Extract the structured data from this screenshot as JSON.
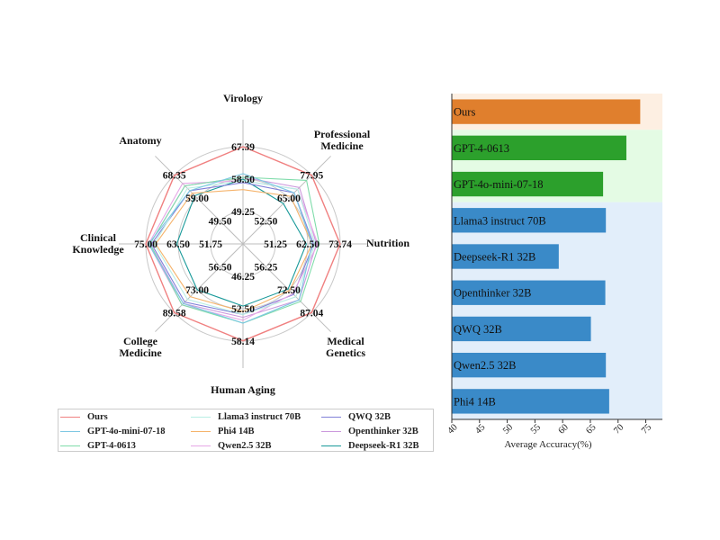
{
  "chart_data": [
    {
      "type": "radar",
      "axes": [
        "Virology",
        "Professional Medicine",
        "Nutrition",
        "Medical Genetics",
        "Human Aging",
        "College Medicine",
        "Clinical Knowledge",
        "Anatomy"
      ],
      "ring_labels": [
        [
          "49.25",
          "58.50",
          "67.39"
        ],
        [
          "52.50",
          "65.00",
          "77.95"
        ],
        [
          "51.25",
          "62.50",
          "73.74"
        ],
        [
          "56.25",
          "72.50",
          "87.04"
        ],
        [
          "46.25",
          "52.50",
          "58.14"
        ],
        [
          "56.50",
          "73.00",
          "89.58"
        ],
        [
          "51.75",
          "63.50",
          "75.00"
        ],
        [
          "49.50",
          "59.00",
          "68.35"
        ]
      ],
      "series": [
        {
          "name": "Ours",
          "color": "#f08080",
          "values": [
            67.4,
            77.9,
            73.7,
            87.0,
            58.1,
            89.6,
            75.0,
            68.3
          ]
        },
        {
          "name": "GPT-4o-mini-07-18",
          "color": "#7ec8e3",
          "values": [
            60.0,
            68.0,
            64.0,
            79.0,
            55.0,
            83.0,
            74.0,
            62.0
          ]
        },
        {
          "name": "GPT-4-0613",
          "color": "#7fdcaa",
          "values": [
            59.0,
            75.0,
            66.5,
            80.0,
            55.0,
            84.0,
            73.5,
            64.0
          ]
        },
        {
          "name": "Llama3 instruct 70B",
          "color": "#b8eee4",
          "values": [
            58.0,
            70.0,
            65.0,
            77.0,
            53.5,
            80.0,
            72.0,
            63.0
          ]
        },
        {
          "name": "Phi4 14B",
          "color": "#f5b36b",
          "values": [
            55.5,
            66.0,
            64.0,
            73.0,
            53.0,
            78.0,
            71.5,
            61.0
          ]
        },
        {
          "name": "Qwen2.5 32B",
          "color": "#e6a8e6",
          "values": [
            58.0,
            70.0,
            66.0,
            75.0,
            54.5,
            84.0,
            74.0,
            65.0
          ]
        },
        {
          "name": "QWQ 32B",
          "color": "#8080d8",
          "values": [
            57.5,
            68.0,
            64.5,
            75.5,
            53.5,
            82.0,
            73.0,
            62.0
          ]
        },
        {
          "name": "Openthinker 32B",
          "color": "#cc99dd",
          "values": [
            59.0,
            71.0,
            65.5,
            79.0,
            54.0,
            83.0,
            73.5,
            64.0
          ]
        },
        {
          "name": "Deepseek-R1 32B",
          "color": "#1a9a9a",
          "values": [
            58.5,
            62.0,
            62.0,
            72.0,
            52.0,
            73.0,
            64.0,
            60.0
          ]
        }
      ],
      "legend_order": [
        "Ours",
        "Llama3 instruct 70B",
        "QWQ 32B",
        "GPT-4o-mini-07-18",
        "Phi4 14B",
        "Openthinker 32B",
        "GPT-4-0613",
        "Qwen2.5 32B",
        "Deepseek-R1 32B"
      ]
    },
    {
      "type": "bar",
      "orientation": "horizontal",
      "categories": [
        "Ours",
        "GPT-4-0613",
        "GPT-4o-mini-07-18",
        "Llama3 instruct 70B",
        "Deepseek-R1 32B",
        "Openthinker 32B",
        "QWQ 32B",
        "Qwen2.5 32B",
        "Phi4 14B"
      ],
      "values": [
        74.0,
        71.5,
        67.3,
        67.8,
        59.3,
        67.7,
        65.1,
        67.8,
        68.4
      ],
      "colors": [
        "#e07f2d",
        "#2ca02c",
        "#2ca02c",
        "#3a8ac8",
        "#3a8ac8",
        "#3a8ac8",
        "#3a8ac8",
        "#3a8ac8",
        "#3a8ac8"
      ],
      "group_bg": [
        {
          "from": 0,
          "to": 0,
          "color": "#fdefe2"
        },
        {
          "from": 1,
          "to": 2,
          "color": "#e4fbe4"
        },
        {
          "from": 3,
          "to": 8,
          "color": "#e2eefa"
        }
      ],
      "xlabel": "Average Accuracy(%)",
      "xlim": [
        40,
        78
      ],
      "xticks": [
        40,
        45,
        50,
        55,
        60,
        65,
        70,
        75
      ]
    }
  ]
}
